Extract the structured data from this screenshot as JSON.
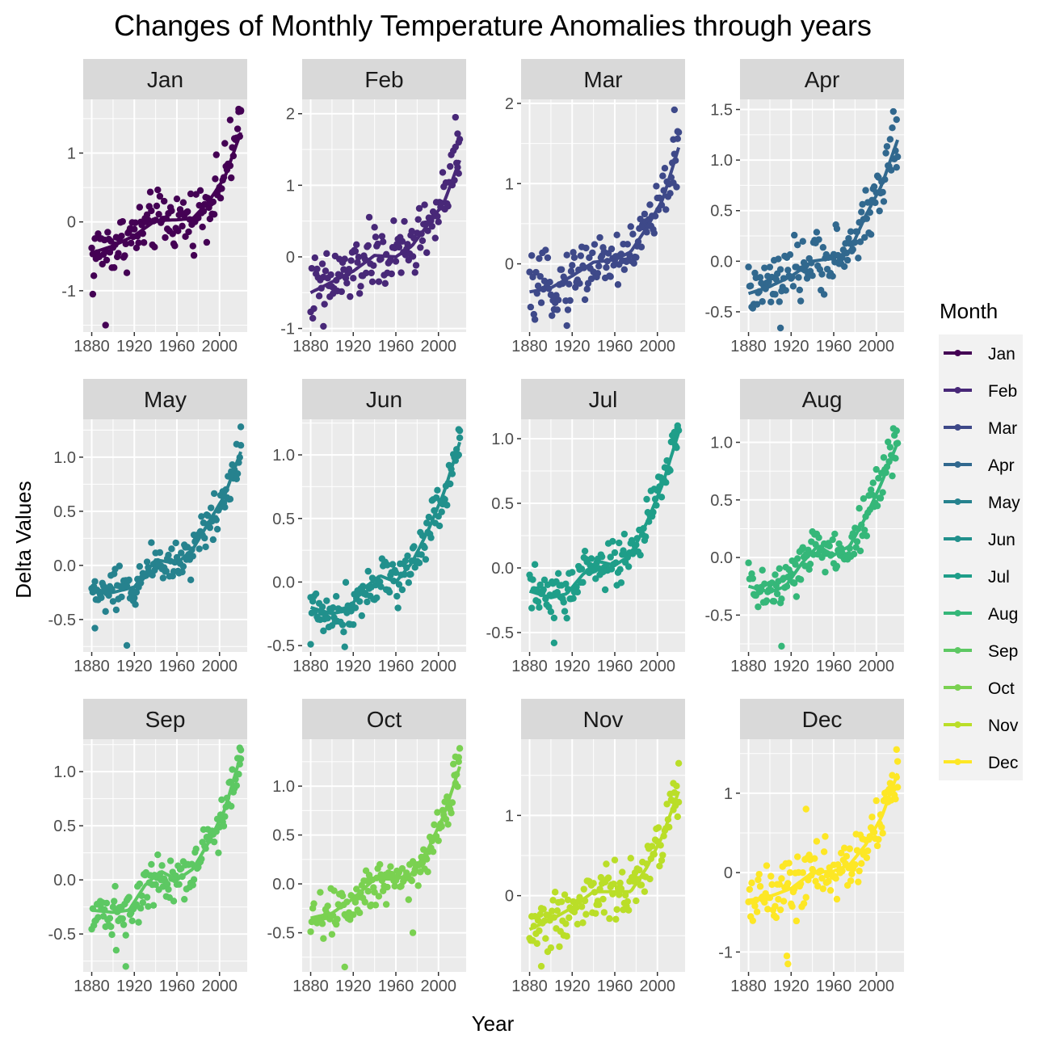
{
  "chart_data": {
    "type": "scatter",
    "title": "Changes of Monthly Temperature Anomalies through years",
    "xlabel": "Year",
    "ylabel": "Delta Values",
    "legend_title": "Month",
    "legend_position": "right",
    "grid": true,
    "smoothing_line": true,
    "x_ticks": [
      1880,
      1920,
      1960,
      2000
    ],
    "x_tick_labels": [
      "1880",
      "1920",
      "1960",
      "2000"
    ],
    "xlim": [
      1872,
      2026
    ],
    "panels": [
      {
        "name": "Jan",
        "color": "#440154",
        "ylim": [
          -1.6,
          1.78
        ],
        "y_ticks": [
          -1,
          0,
          1
        ],
        "y_tick_labels": [
          "-1",
          "0",
          "1"
        ],
        "trend": [
          [
            1880,
            -0.45
          ],
          [
            1900,
            -0.35
          ],
          [
            1920,
            -0.2
          ],
          [
            1940,
            0.02
          ],
          [
            1960,
            0.03
          ],
          [
            1975,
            0.05
          ],
          [
            1990,
            0.3
          ],
          [
            2005,
            0.65
          ],
          [
            2020,
            1.3
          ]
        ],
        "noise": 0.25,
        "extremes": [
          [
            1893,
            -1.5
          ],
          [
            1881,
            -1.05
          ],
          [
            2020,
            1.62
          ],
          [
            2018,
            1.6
          ],
          [
            2010,
            1.48
          ]
        ]
      },
      {
        "name": "Feb",
        "color": "#482878",
        "ylim": [
          -1.05,
          2.2
        ],
        "y_ticks": [
          -1,
          0,
          1,
          2
        ],
        "y_tick_labels": [
          "-1",
          "0",
          "1",
          "2"
        ],
        "trend": [
          [
            1880,
            -0.5
          ],
          [
            1900,
            -0.35
          ],
          [
            1920,
            -0.2
          ],
          [
            1940,
            0.02
          ],
          [
            1960,
            0.0
          ],
          [
            1975,
            0.15
          ],
          [
            1990,
            0.45
          ],
          [
            2005,
            0.75
          ],
          [
            2020,
            1.35
          ]
        ],
        "noise": 0.28,
        "extremes": [
          [
            1892,
            -0.97
          ],
          [
            2016,
            1.95
          ],
          [
            2018,
            1.72
          ],
          [
            2019,
            1.6
          ]
        ]
      },
      {
        "name": "Mar",
        "color": "#3E4989",
        "ylim": [
          -0.85,
          2.05
        ],
        "y_ticks": [
          0,
          1,
          2
        ],
        "y_tick_labels": [
          "0",
          "1",
          "2"
        ],
        "trend": [
          [
            1880,
            -0.35
          ],
          [
            1900,
            -0.3
          ],
          [
            1920,
            -0.15
          ],
          [
            1940,
            0.02
          ],
          [
            1960,
            0.05
          ],
          [
            1975,
            0.15
          ],
          [
            1990,
            0.45
          ],
          [
            2005,
            0.8
          ],
          [
            2020,
            1.45
          ]
        ],
        "noise": 0.22,
        "extremes": [
          [
            1915,
            -0.77
          ],
          [
            2016,
            1.92
          ],
          [
            2019,
            1.65
          ],
          [
            2015,
            1.55
          ]
        ]
      },
      {
        "name": "Apr",
        "color": "#31688E",
        "ylim": [
          -0.7,
          1.6
        ],
        "y_ticks": [
          -0.5,
          0.0,
          0.5,
          1.0,
          1.5
        ],
        "y_tick_labels": [
          "-0.5",
          "0.0",
          "0.5",
          "1.0",
          "1.5"
        ],
        "trend": [
          [
            1880,
            -0.32
          ],
          [
            1900,
            -0.25
          ],
          [
            1920,
            -0.15
          ],
          [
            1940,
            0.0
          ],
          [
            1960,
            0.03
          ],
          [
            1975,
            0.1
          ],
          [
            1990,
            0.45
          ],
          [
            2005,
            0.75
          ],
          [
            2020,
            1.2
          ]
        ],
        "noise": 0.17,
        "extremes": [
          [
            1910,
            -0.66
          ],
          [
            2016,
            1.48
          ],
          [
            2019,
            1.4
          ]
        ]
      },
      {
        "name": "May",
        "color": "#26828E",
        "ylim": [
          -0.8,
          1.35
        ],
        "y_ticks": [
          -0.5,
          0.0,
          0.5,
          1.0
        ],
        "y_tick_labels": [
          "-0.5",
          "0.0",
          "0.5",
          "1.0"
        ],
        "trend": [
          [
            1880,
            -0.25
          ],
          [
            1900,
            -0.25
          ],
          [
            1920,
            -0.2
          ],
          [
            1940,
            0.05
          ],
          [
            1960,
            0.02
          ],
          [
            1975,
            0.15
          ],
          [
            1990,
            0.4
          ],
          [
            2005,
            0.65
          ],
          [
            2020,
            1.05
          ]
        ],
        "noise": 0.12,
        "extremes": [
          [
            1913,
            -0.74
          ],
          [
            1883,
            -0.58
          ],
          [
            2020,
            1.28
          ],
          [
            2016,
            1.12
          ]
        ]
      },
      {
        "name": "Jun",
        "color": "#21908C",
        "ylim": [
          -0.55,
          1.28
        ],
        "y_ticks": [
          -0.5,
          0.0,
          0.5,
          1.0
        ],
        "y_tick_labels": [
          "-0.5",
          "0.0",
          "0.5",
          "1.0"
        ],
        "trend": [
          [
            1880,
            -0.2
          ],
          [
            1900,
            -0.25
          ],
          [
            1915,
            -0.22
          ],
          [
            1930,
            -0.05
          ],
          [
            1945,
            0.05
          ],
          [
            1960,
            0.0
          ],
          [
            1975,
            0.15
          ],
          [
            1990,
            0.4
          ],
          [
            2005,
            0.7
          ],
          [
            2020,
            1.1
          ]
        ],
        "noise": 0.11,
        "extremes": [
          [
            1912,
            -0.51
          ],
          [
            1880,
            -0.49
          ],
          [
            2019,
            1.2
          ],
          [
            2020,
            1.19
          ]
        ]
      },
      {
        "name": "Jul",
        "color": "#1F9E89",
        "ylim": [
          -0.65,
          1.15
        ],
        "y_ticks": [
          -0.5,
          0.0,
          0.5,
          1.0
        ],
        "y_tick_labels": [
          "-0.5",
          "0.0",
          "0.5",
          "1.0"
        ],
        "trend": [
          [
            1880,
            -0.18
          ],
          [
            1900,
            -0.23
          ],
          [
            1915,
            -0.2
          ],
          [
            1930,
            -0.05
          ],
          [
            1945,
            0.05
          ],
          [
            1960,
            0.02
          ],
          [
            1975,
            0.1
          ],
          [
            1990,
            0.35
          ],
          [
            2005,
            0.65
          ],
          [
            2020,
            1.05
          ]
        ],
        "noise": 0.11,
        "extremes": [
          [
            1903,
            -0.58
          ],
          [
            2019,
            1.1
          ],
          [
            2016,
            1.05
          ]
        ]
      },
      {
        "name": "Aug",
        "color": "#35B779",
        "ylim": [
          -0.82,
          1.2
        ],
        "y_ticks": [
          -0.5,
          0.0,
          0.5,
          1.0
        ],
        "y_tick_labels": [
          "-0.5",
          "0.0",
          "0.5",
          "1.0"
        ],
        "trend": [
          [
            1880,
            -0.25
          ],
          [
            1900,
            -0.3
          ],
          [
            1915,
            -0.25
          ],
          [
            1930,
            -0.05
          ],
          [
            1945,
            0.1
          ],
          [
            1960,
            0.02
          ],
          [
            1975,
            0.1
          ],
          [
            1990,
            0.35
          ],
          [
            2005,
            0.65
          ],
          [
            2020,
            1.0
          ]
        ],
        "noise": 0.13,
        "extremes": [
          [
            1911,
            -0.77
          ],
          [
            2016,
            1.12
          ],
          [
            2019,
            1.1
          ]
        ]
      },
      {
        "name": "Sep",
        "color": "#5DC863",
        "ylim": [
          -0.85,
          1.3
        ],
        "y_ticks": [
          -0.5,
          0.0,
          0.5,
          1.0
        ],
        "y_tick_labels": [
          "-0.5",
          "0.0",
          "0.5",
          "1.0"
        ],
        "trend": [
          [
            1880,
            -0.28
          ],
          [
            1900,
            -0.3
          ],
          [
            1915,
            -0.28
          ],
          [
            1930,
            -0.05
          ],
          [
            1945,
            0.08
          ],
          [
            1960,
            0.0
          ],
          [
            1975,
            0.1
          ],
          [
            1990,
            0.35
          ],
          [
            2005,
            0.65
          ],
          [
            2020,
            1.15
          ]
        ],
        "noise": 0.13,
        "extremes": [
          [
            1912,
            -0.8
          ],
          [
            1903,
            -0.65
          ],
          [
            2019,
            1.22
          ],
          [
            2020,
            1.2
          ]
        ]
      },
      {
        "name": "Oct",
        "color": "#7AD151",
        "ylim": [
          -0.9,
          1.48
        ],
        "y_ticks": [
          -0.5,
          0.0,
          0.5,
          1.0
        ],
        "y_tick_labels": [
          "-0.5",
          "0.0",
          "0.5",
          "1.0"
        ],
        "trend": [
          [
            1880,
            -0.35
          ],
          [
            1900,
            -0.3
          ],
          [
            1920,
            -0.15
          ],
          [
            1940,
            0.05
          ],
          [
            1960,
            0.05
          ],
          [
            1975,
            0.1
          ],
          [
            1990,
            0.35
          ],
          [
            2005,
            0.7
          ],
          [
            2020,
            1.2
          ]
        ],
        "noise": 0.15,
        "extremes": [
          [
            1912,
            -0.85
          ],
          [
            2016,
            1.3
          ],
          [
            2019,
            1.25
          ],
          [
            1976,
            -0.5
          ]
        ]
      },
      {
        "name": "Nov",
        "color": "#BADE28",
        "ylim": [
          -0.95,
          1.95
        ],
        "y_ticks": [
          0,
          1
        ],
        "y_tick_labels": [
          "0",
          "1"
        ],
        "trend": [
          [
            1880,
            -0.42
          ],
          [
            1900,
            -0.3
          ],
          [
            1920,
            -0.15
          ],
          [
            1940,
            0.05
          ],
          [
            1960,
            0.05
          ],
          [
            1975,
            0.05
          ],
          [
            1990,
            0.35
          ],
          [
            2005,
            0.75
          ],
          [
            2020,
            1.3
          ]
        ],
        "noise": 0.22,
        "extremes": [
          [
            1891,
            -0.88
          ],
          [
            2020,
            1.65
          ],
          [
            2015,
            1.4
          ]
        ]
      },
      {
        "name": "Dec",
        "color": "#FDE725",
        "ylim": [
          -1.25,
          1.68
        ],
        "y_ticks": [
          -1,
          0,
          1
        ],
        "y_tick_labels": [
          "-1",
          "0",
          "1"
        ],
        "trend": [
          [
            1880,
            -0.35
          ],
          [
            1900,
            -0.3
          ],
          [
            1920,
            -0.2
          ],
          [
            1940,
            0.0
          ],
          [
            1960,
            0.02
          ],
          [
            1975,
            0.1
          ],
          [
            1990,
            0.35
          ],
          [
            2005,
            0.7
          ],
          [
            2020,
            1.25
          ]
        ],
        "noise": 0.22,
        "extremes": [
          [
            1917,
            -1.15
          ],
          [
            1916,
            -1.05
          ],
          [
            2019,
            1.55
          ],
          [
            2020,
            1.4
          ],
          [
            1934,
            0.8
          ]
        ]
      }
    ]
  }
}
